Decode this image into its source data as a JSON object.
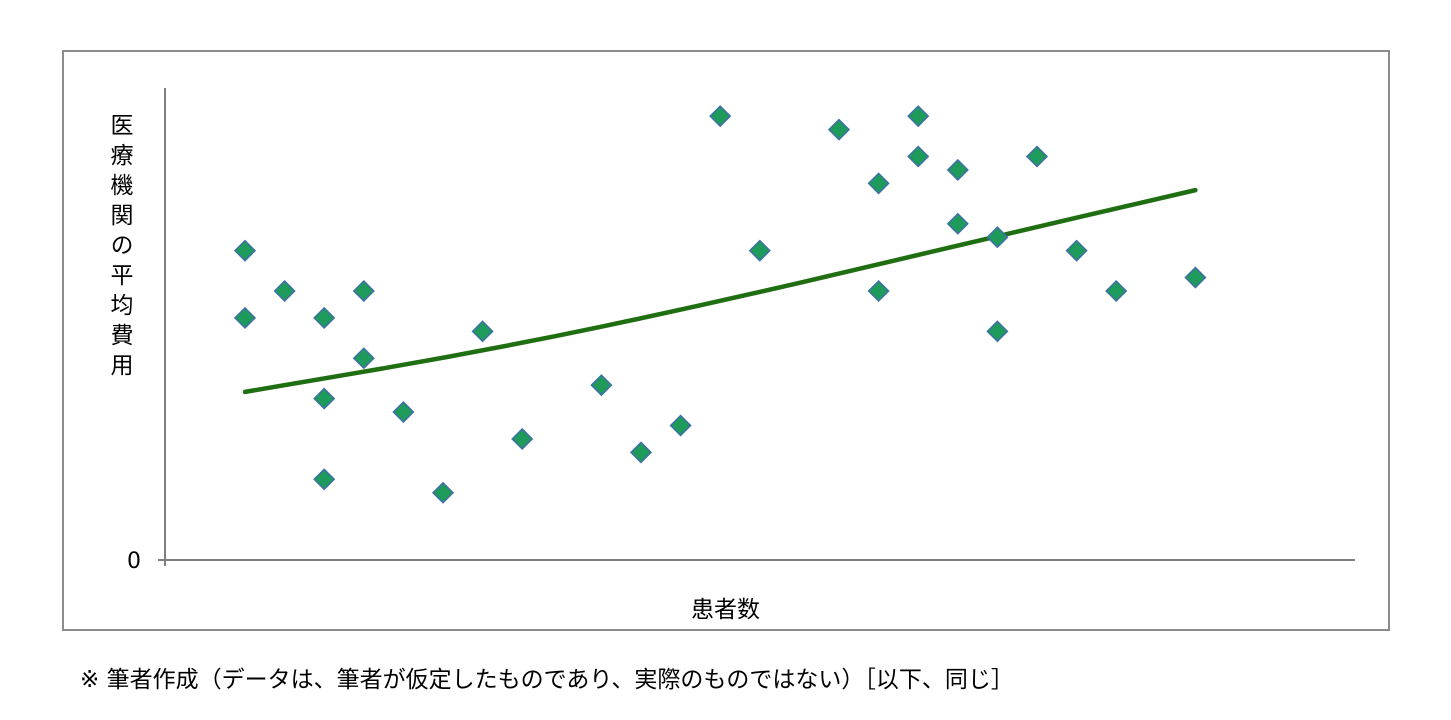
{
  "chart_data": {
    "type": "scatter",
    "title": "",
    "xlabel": "患者数",
    "ylabel": "医療機関の平均費用",
    "y_tick_labels": [
      "0"
    ],
    "xlim": [
      0,
      30
    ],
    "ylim": [
      0,
      35
    ],
    "grid": false,
    "legend": "none",
    "marker": "diamond",
    "colors": {
      "marker_fill": "#1e9a5a",
      "marker_edge": "#3f6fa8",
      "trendline": "#1f6e12",
      "axis": "#7f7f7f",
      "frame": "#8c8c8c"
    },
    "points": [
      {
        "x": 2,
        "y": 23
      },
      {
        "x": 2,
        "y": 18
      },
      {
        "x": 3,
        "y": 20
      },
      {
        "x": 4,
        "y": 18
      },
      {
        "x": 4,
        "y": 12
      },
      {
        "x": 4,
        "y": 6
      },
      {
        "x": 5,
        "y": 20
      },
      {
        "x": 5,
        "y": 15
      },
      {
        "x": 6,
        "y": 11
      },
      {
        "x": 7,
        "y": 5
      },
      {
        "x": 8,
        "y": 17
      },
      {
        "x": 9,
        "y": 9
      },
      {
        "x": 11,
        "y": 13
      },
      {
        "x": 12,
        "y": 8
      },
      {
        "x": 13,
        "y": 10
      },
      {
        "x": 14,
        "y": 33
      },
      {
        "x": 15,
        "y": 23
      },
      {
        "x": 17,
        "y": 32
      },
      {
        "x": 18,
        "y": 28
      },
      {
        "x": 18,
        "y": 20
      },
      {
        "x": 19,
        "y": 33
      },
      {
        "x": 19,
        "y": 30
      },
      {
        "x": 20,
        "y": 29
      },
      {
        "x": 20,
        "y": 25
      },
      {
        "x": 21,
        "y": 24
      },
      {
        "x": 21,
        "y": 17
      },
      {
        "x": 22,
        "y": 30
      },
      {
        "x": 23,
        "y": 23
      },
      {
        "x": 24,
        "y": 20
      },
      {
        "x": 26,
        "y": 21
      }
    ],
    "trendline": {
      "type": "exponential",
      "x": [
        2,
        8,
        14,
        20,
        26
      ],
      "y": [
        12.5,
        15.5,
        19.2,
        23.4,
        27.5
      ]
    }
  },
  "footnote": "※ 筆者作成（データは、筆者が仮定したものであり、実際のものではない）［以下、同じ］"
}
